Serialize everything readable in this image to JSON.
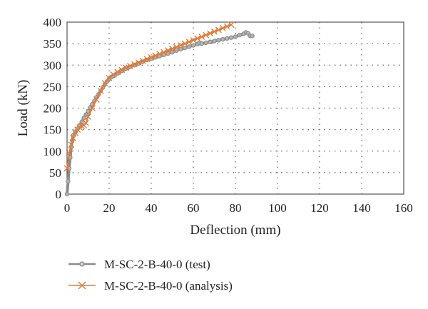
{
  "chart_data": {
    "type": "line",
    "xlabel": "Deflection (mm)",
    "ylabel": "Load (kN)",
    "xlim": [
      0,
      160
    ],
    "ylim": [
      0,
      400
    ],
    "x_ticks": [
      0,
      20,
      40,
      60,
      80,
      100,
      120,
      140,
      160
    ],
    "y_ticks": [
      0,
      50,
      100,
      150,
      200,
      250,
      300,
      350,
      400
    ],
    "grid": "dotted",
    "legend_position": "bottom-left",
    "series": [
      {
        "name": "M-SC-2-B-40-0 (test)",
        "color": "#8c8c8c",
        "marker": "circle",
        "x": [
          0,
          0.5,
          1,
          1.5,
          2,
          2.5,
          3,
          4,
          5,
          6,
          7,
          8,
          9,
          10,
          11,
          12,
          13,
          14,
          15,
          16,
          17,
          18,
          19,
          20,
          21,
          22,
          23,
          24,
          25,
          26,
          27,
          28,
          29,
          30,
          32,
          34,
          36,
          38,
          40,
          42,
          44,
          46,
          48,
          50,
          52,
          54,
          56,
          58,
          60,
          62,
          63,
          64,
          66,
          68,
          70,
          72,
          74,
          76,
          78,
          80,
          82,
          84,
          85,
          86,
          87,
          88
        ],
        "y": [
          0,
          30,
          60,
          85,
          110,
          125,
          137,
          145,
          152,
          160,
          168,
          177,
          185,
          193,
          201,
          209,
          217,
          225,
          232,
          240,
          248,
          256,
          262,
          268,
          272,
          275,
          278,
          281,
          284,
          287,
          290,
          292,
          294,
          296,
          300,
          304,
          308,
          312,
          315,
          318,
          321,
          324,
          327,
          330,
          334,
          337,
          340,
          343,
          346,
          349,
          352,
          350,
          352,
          354,
          356,
          358,
          360,
          362,
          364,
          366,
          370,
          373,
          376,
          374,
          368,
          368
        ]
      },
      {
        "name": "M-SC-2-B-40-0 (analysis)",
        "color": "#e07b39",
        "marker": "x",
        "x": [
          0,
          1,
          2,
          3,
          4,
          5,
          6,
          7,
          8,
          9,
          10,
          12,
          14,
          16,
          18,
          20,
          22,
          24,
          26,
          28,
          30,
          32,
          34,
          36,
          38,
          40,
          42,
          44,
          46,
          48,
          50,
          52,
          54,
          56,
          58,
          60,
          62,
          64,
          66,
          68,
          70,
          72,
          74,
          76,
          78
        ],
        "y": [
          60,
          95,
          115,
          130,
          142,
          150,
          155,
          158,
          160,
          165,
          180,
          200,
          220,
          240,
          258,
          270,
          278,
          284,
          289,
          294,
          298,
          302,
          306,
          310,
          314,
          318,
          322,
          326,
          330,
          334,
          338,
          342,
          346,
          350,
          354,
          358,
          362,
          366,
          370,
          374,
          378,
          382,
          386,
          390,
          394
        ]
      }
    ]
  }
}
